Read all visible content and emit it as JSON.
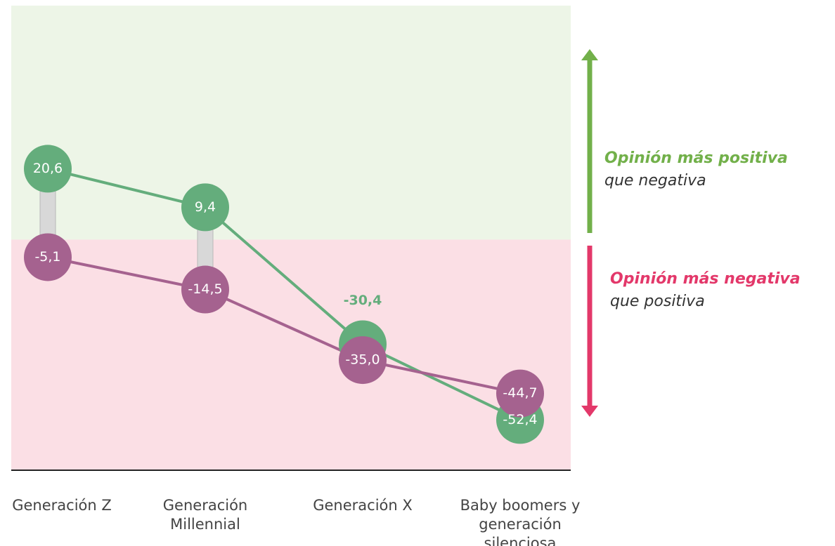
{
  "chart_data": {
    "type": "dot-line",
    "categories": [
      "Generación Z",
      "Generación Millennial",
      "Generación X",
      "Baby boomers y generación silenciosa"
    ],
    "series": [
      {
        "color": "#64ad7c",
        "values": [
          20.6,
          9.4,
          -30.4,
          -52.4
        ],
        "value_labels": [
          "20,6",
          "9,4",
          "-30,4",
          "-52,4"
        ]
      },
      {
        "color": "#a5628f",
        "values": [
          -5.1,
          -14.5,
          -35.0,
          -44.7
        ],
        "value_labels": [
          "-5,1",
          "-14,5",
          "-35,0",
          "-44,7"
        ]
      }
    ],
    "ylim": [
      -67,
      68
    ],
    "annotations": [
      {
        "title": "Opinión más positiva",
        "text": "que negativa",
        "color": "#72b04a"
      },
      {
        "title": "Opinión más negativa",
        "text": "que positiva",
        "color": "#e3386a"
      }
    ]
  }
}
